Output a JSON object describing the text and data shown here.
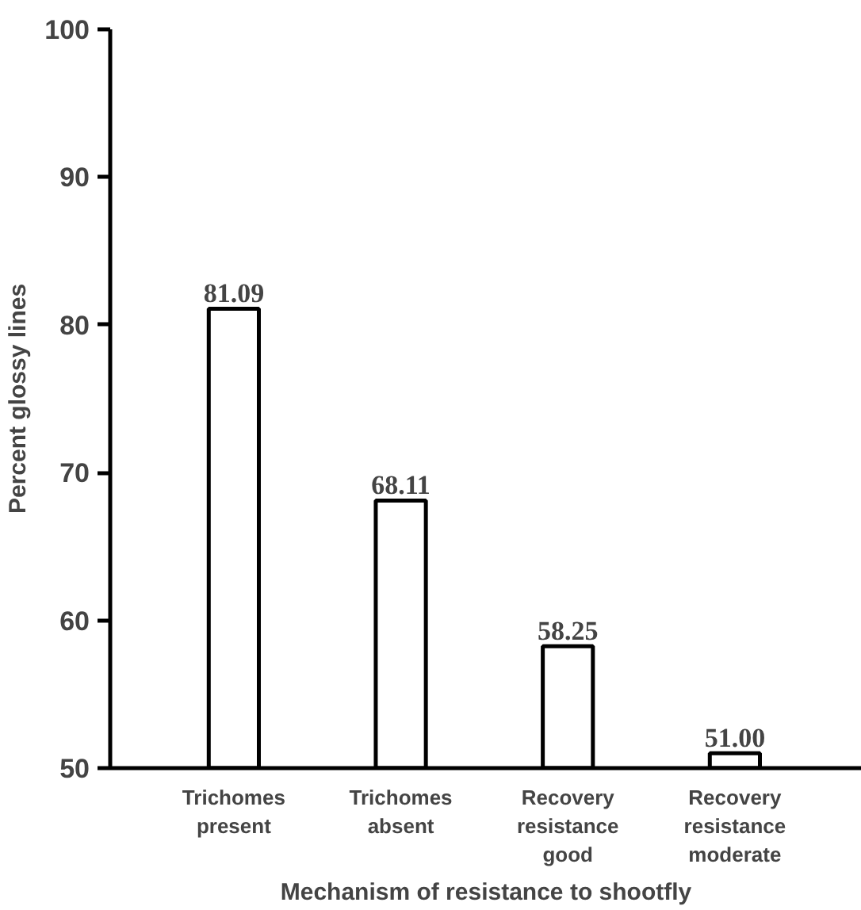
{
  "chart_data": {
    "type": "bar",
    "xlabel": "Mechanism of resistance to shootfly",
    "ylabel": "Percent glossy lines",
    "categories": [
      "Trichomes present",
      "Trichomes absent",
      "Recovery resistance good",
      "Recovery resistance moderate"
    ],
    "values": [
      81.09,
      68.11,
      58.25,
      51.0
    ],
    "value_labels": [
      "81.09",
      "68.11",
      "58.25",
      "51.00"
    ],
    "color": "#ffffff",
    "ylim": [
      50,
      100
    ],
    "yticks": [
      50,
      60,
      70,
      80,
      90,
      100
    ],
    "grid": false
  }
}
